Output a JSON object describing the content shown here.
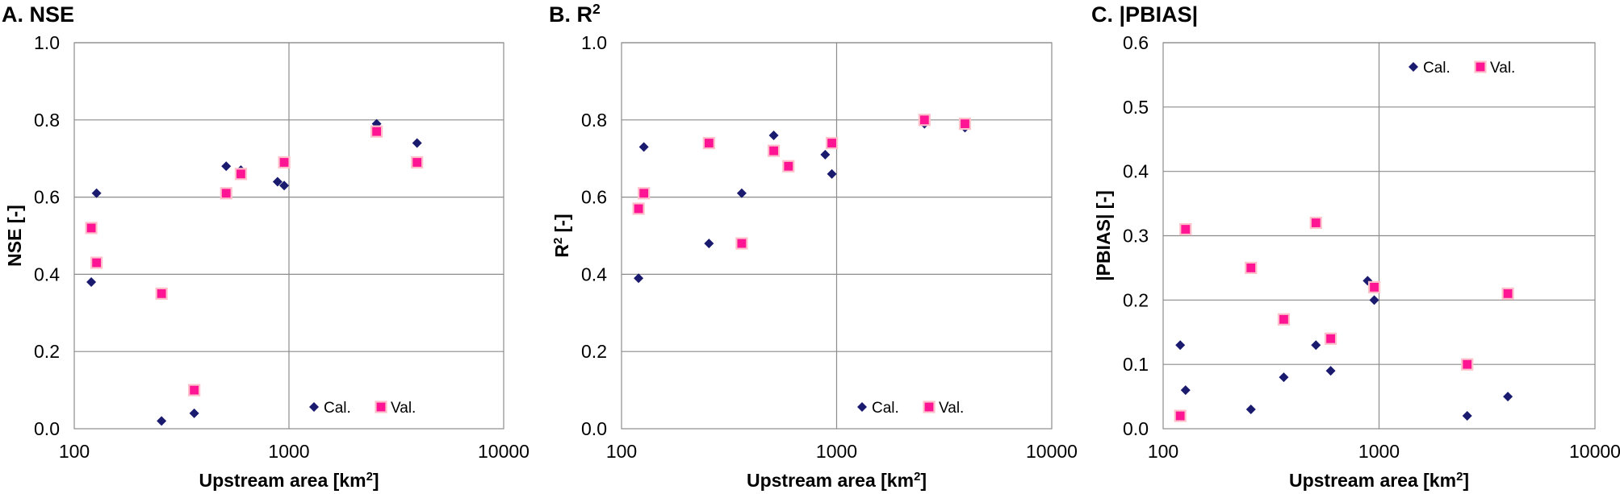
{
  "figure": {
    "legend": {
      "cal": "Cal.",
      "val": "Val."
    },
    "colors": {
      "cal": "#1a1a6e",
      "val_fill": "#ff1493",
      "val_edge": "#ffc0cb",
      "grid": "#8c8c8c"
    }
  },
  "chart_data": [
    {
      "id": "A",
      "type": "scatter",
      "title": "A. NSE",
      "xlabel": "Upstream area [km²]",
      "ylabel": "NSE [-]",
      "xscale": "log",
      "xlim": [
        100,
        10000
      ],
      "xticks": [
        100,
        1000,
        10000
      ],
      "xtick_labels": [
        "100",
        "1000",
        "10000"
      ],
      "ylim": [
        0,
        1.0
      ],
      "yticks": [
        0,
        0.2,
        0.4,
        0.6,
        0.8,
        1.0
      ],
      "ytick_labels": [
        "0.0",
        "0.2",
        "0.4",
        "0.6",
        "0.8",
        "1.0"
      ],
      "legend_position": "bottom-right",
      "series": [
        {
          "name": "Cal.",
          "x": [
            120,
            127,
            255,
            362,
            510,
            597,
            885,
            950,
            2560,
            3950
          ],
          "y": [
            0.38,
            0.61,
            0.02,
            0.04,
            0.68,
            0.67,
            0.64,
            0.63,
            0.79,
            0.74
          ]
        },
        {
          "name": "Val.",
          "x": [
            120,
            127,
            255,
            362,
            510,
            597,
            950,
            2560,
            3950
          ],
          "y": [
            0.52,
            0.43,
            0.35,
            0.1,
            0.61,
            0.66,
            0.69,
            0.77,
            0.69
          ]
        }
      ]
    },
    {
      "id": "B",
      "type": "scatter",
      "title": "B. R²",
      "xlabel": "Upstream area [km²]",
      "ylabel": "R² [-]",
      "xscale": "log",
      "xlim": [
        100,
        10000
      ],
      "xticks": [
        100,
        1000,
        10000
      ],
      "xtick_labels": [
        "100",
        "1000",
        "10000"
      ],
      "ylim": [
        0,
        1.0
      ],
      "yticks": [
        0,
        0.2,
        0.4,
        0.6,
        0.8,
        1.0
      ],
      "ytick_labels": [
        "0.0",
        "0.2",
        "0.4",
        "0.6",
        "0.8",
        "1.0"
      ],
      "legend_position": "bottom-right",
      "series": [
        {
          "name": "Cal.",
          "x": [
            120,
            127,
            255,
            362,
            510,
            597,
            885,
            950,
            2560,
            3950
          ],
          "y": [
            0.39,
            0.73,
            0.48,
            0.61,
            0.76,
            0.68,
            0.71,
            0.66,
            0.79,
            0.78
          ]
        },
        {
          "name": "Val.",
          "x": [
            120,
            127,
            255,
            362,
            510,
            597,
            950,
            2560,
            3950
          ],
          "y": [
            0.57,
            0.61,
            0.74,
            0.48,
            0.72,
            0.68,
            0.74,
            0.8,
            0.79
          ]
        }
      ]
    },
    {
      "id": "C",
      "type": "scatter",
      "title": "C. |PBIAS|",
      "xlabel": "Upstream area [km²]",
      "ylabel": "|PBIAS| [-]",
      "xscale": "log",
      "xlim": [
        100,
        10000
      ],
      "xticks": [
        100,
        1000,
        10000
      ],
      "xtick_labels": [
        "100",
        "1000",
        "10000"
      ],
      "ylim": [
        0,
        0.6
      ],
      "yticks": [
        0,
        0.1,
        0.2,
        0.3,
        0.4,
        0.5,
        0.6
      ],
      "ytick_labels": [
        "0.0",
        "0.1",
        "0.2",
        "0.3",
        "0.4",
        "0.5",
        "0.6"
      ],
      "legend_position": "top-right",
      "series": [
        {
          "name": "Cal.",
          "x": [
            120,
            127,
            255,
            362,
            510,
            597,
            885,
            950,
            2560,
            3950
          ],
          "y": [
            0.13,
            0.06,
            0.03,
            0.08,
            0.13,
            0.09,
            0.23,
            0.2,
            0.02,
            0.05
          ]
        },
        {
          "name": "Val.",
          "x": [
            120,
            127,
            255,
            362,
            510,
            597,
            950,
            2560,
            3950
          ],
          "y": [
            0.02,
            0.31,
            0.25,
            0.17,
            0.32,
            0.14,
            0.22,
            0.1,
            0.21
          ]
        }
      ]
    }
  ]
}
